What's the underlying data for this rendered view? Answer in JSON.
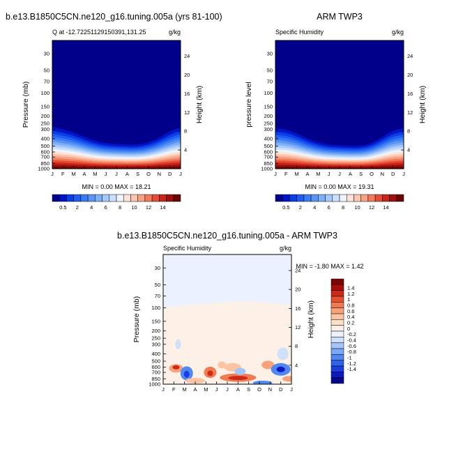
{
  "colors": {
    "q_scale": [
      "#00008a",
      "#0015c8",
      "#0a3ee6",
      "#1f5ef0",
      "#3a7af2",
      "#5a95f5",
      "#7eb0f7",
      "#a4c9fa",
      "#cbe0fc",
      "#eef4fd",
      "#fde4d6",
      "#fbc6ad",
      "#f8a284",
      "#f27a5c",
      "#e44c35",
      "#c8261a",
      "#9e0f0d",
      "#6e0505"
    ],
    "diff_scale": [
      "#08088a",
      "#0c18c0",
      "#1a3de0",
      "#2e62ec",
      "#4f87f3",
      "#78a8f6",
      "#a5c5f8",
      "#cfe0fa",
      "#ebf2fd",
      "#fdf0e6",
      "#fde0c8",
      "#fcc4a2",
      "#f9a27a",
      "#f27a52",
      "#e6502e",
      "#cc2a18",
      "#a80d0a",
      "#7a0404"
    ],
    "frame": "#000000"
  },
  "chart_data": [
    {
      "type": "heatmap",
      "panel": "model",
      "title": "b.e13.B1850C5CN.ne120_g16.tuning.005a (yrs 81-100)",
      "left_label": "Q at -12.72251129150391,131.25",
      "right_label": "g/kg",
      "ylabel": "Pressure (mb)",
      "ylabel_right": "Height (km)",
      "x_ticks": [
        "J",
        "F",
        "M",
        "A",
        "M",
        "J",
        "J",
        "A",
        "S",
        "O",
        "N",
        "D",
        "J"
      ],
      "y_ticks": [
        "30",
        "50",
        "70",
        "100",
        "150",
        "200",
        "250",
        "300",
        "400",
        "500",
        "600",
        "700",
        "850",
        "1000"
      ],
      "height_ticks": [
        "24",
        "20",
        "16",
        "12",
        "8",
        "4"
      ],
      "stats": "MIN =   0.00 MAX =  18.21",
      "colorbar_labels": [
        "0.5",
        "2",
        "4",
        "6",
        "8",
        "10",
        "12",
        "14"
      ],
      "dry_top_pressure_by_month": [
        280,
        300,
        330,
        380,
        430,
        460,
        470,
        480,
        480,
        450,
        390,
        320,
        280
      ]
    },
    {
      "type": "heatmap",
      "panel": "obs",
      "title": "ARM TWP3",
      "left_label": "Specific Humidity",
      "right_label": "g/kg",
      "ylabel": "pressure level",
      "ylabel_right": "Height (km)",
      "x_ticks": [
        "J",
        "F",
        "M",
        "A",
        "M",
        "J",
        "J",
        "A",
        "S",
        "O",
        "N",
        "D",
        "J"
      ],
      "y_ticks": [
        "30",
        "50",
        "70",
        "100",
        "150",
        "200",
        "250",
        "300",
        "400",
        "500",
        "600",
        "700",
        "850",
        "1000"
      ],
      "height_ticks": [
        "24",
        "20",
        "16",
        "12",
        "8",
        "4"
      ],
      "stats": "MIN =   0.00 MAX =  19.31",
      "colorbar_labels": [
        "0.5",
        "2",
        "4",
        "6",
        "8",
        "10",
        "12",
        "14"
      ],
      "dry_top_pressure_by_month": [
        290,
        300,
        340,
        400,
        450,
        480,
        490,
        500,
        500,
        460,
        380,
        310,
        290
      ]
    },
    {
      "type": "heatmap",
      "panel": "difference",
      "title": "b.e13.B1850C5CN.ne120_g16.tuning.005a - ARM TWP3",
      "left_label": "Specific Humidity",
      "right_label": "g/kg",
      "ylabel": "Pressure (mb)",
      "ylabel_right": "Height (km)",
      "x_ticks": [
        "J",
        "F",
        "M",
        "A",
        "M",
        "J",
        "J",
        "A",
        "S",
        "O",
        "N",
        "D",
        "J"
      ],
      "y_ticks": [
        "30",
        "50",
        "70",
        "100",
        "150",
        "200",
        "250",
        "300",
        "400",
        "500",
        "600",
        "700",
        "850",
        "1000"
      ],
      "height_ticks": [
        "24",
        "20",
        "16",
        "12",
        "8",
        "4"
      ],
      "stats": "MIN =  -1.80 MAX =   1.42",
      "colorbar_labels": [
        "1.4",
        "1.2",
        "1",
        "0.8",
        "0.6",
        "0.4",
        "0.2",
        "0",
        "-0.2",
        "-0.4",
        "-0.6",
        "-0.8",
        "-1",
        "-1.2",
        "-1.4"
      ]
    }
  ]
}
